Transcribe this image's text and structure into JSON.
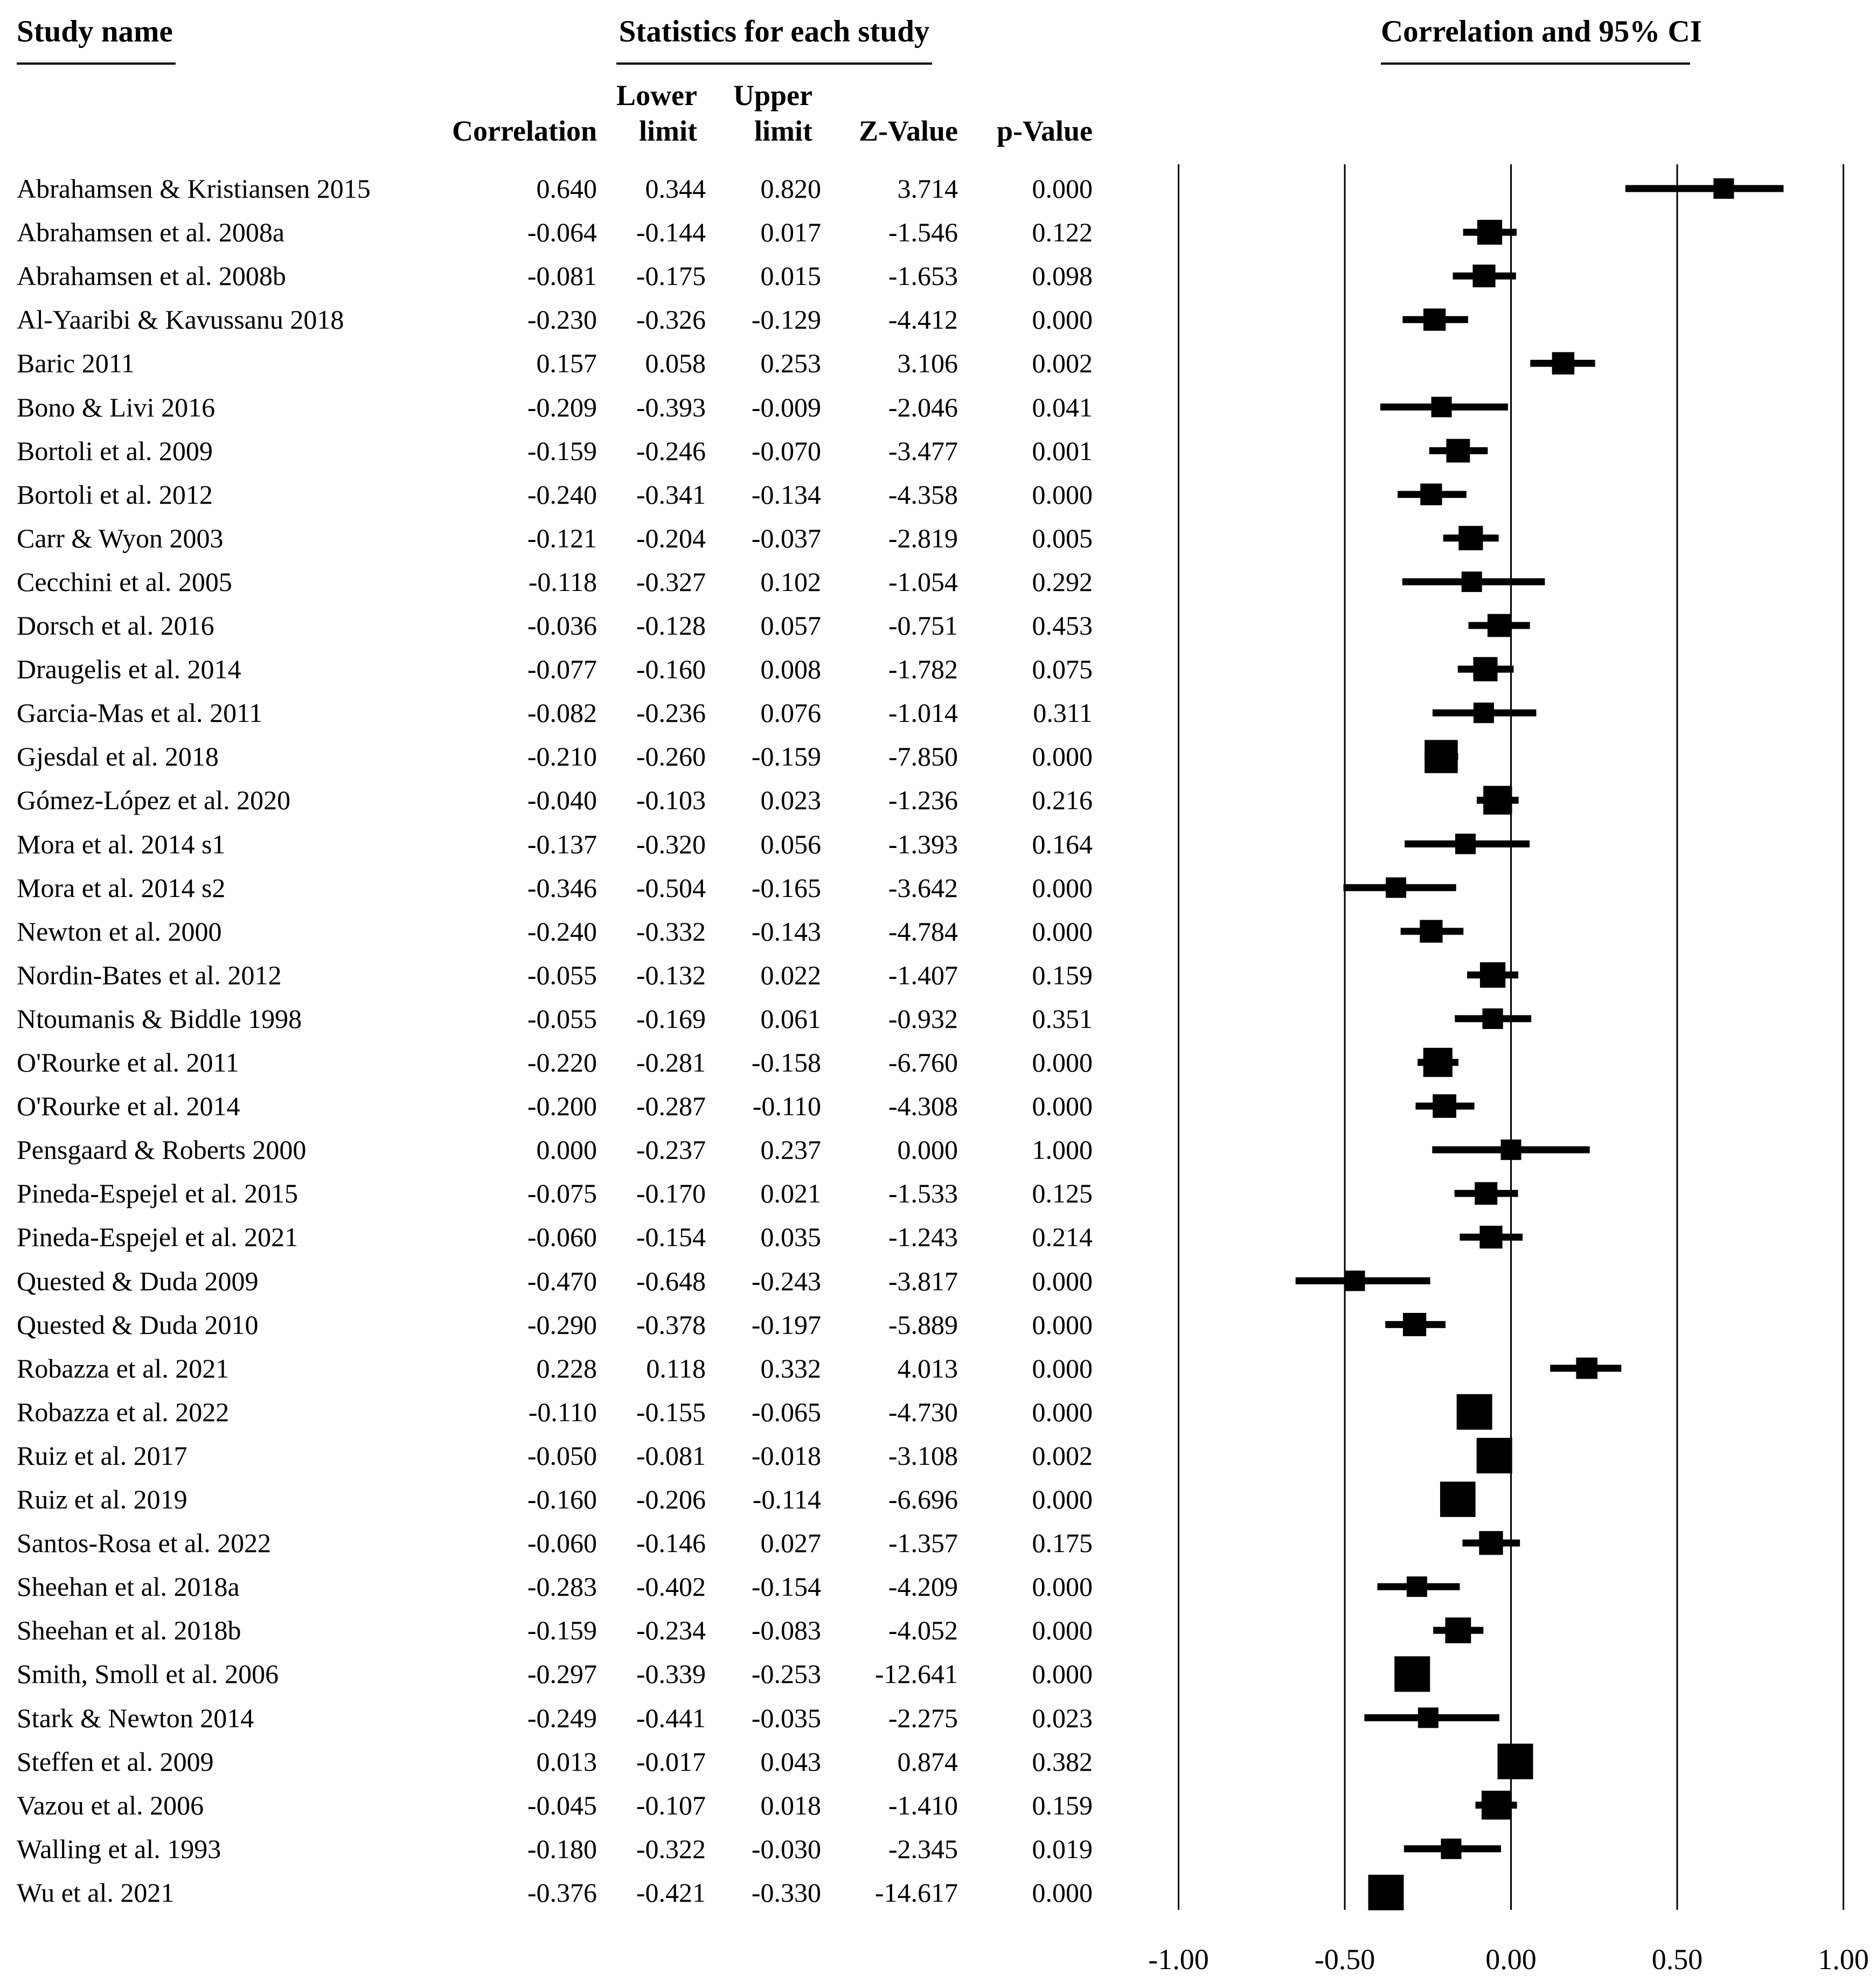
{
  "page": {
    "background": "#ffffff",
    "text_color": "#000000",
    "marker_color": "#000000"
  },
  "table": {
    "header_study": "Study name",
    "header_stats": "Statistics for each study",
    "header_plot": "Correlation and 95% CI",
    "columns": {
      "correlation": "Correlation",
      "lower_top": "Lower",
      "lower_bottom": "limit",
      "upper_top": "Upper",
      "upper_bottom": "limit",
      "z": "Z-Value",
      "p": "p-Value"
    }
  },
  "axis": {
    "tick_labels": [
      "-1.00",
      "-0.50",
      "0.00",
      "0.50",
      "1.00"
    ],
    "tick_values": [
      -1.0,
      -0.5,
      0.0,
      0.5,
      1.0
    ]
  },
  "studies": [
    {
      "name": "Abrahamsen & Kristiansen 2015",
      "correlation": "0.640",
      "lower": "0.344",
      "upper": "0.820",
      "z": "3.714",
      "p": "0.000"
    },
    {
      "name": "Abrahamsen et al. 2008a",
      "correlation": "-0.064",
      "lower": "-0.144",
      "upper": "0.017",
      "z": "-1.546",
      "p": "0.122"
    },
    {
      "name": "Abrahamsen et al. 2008b",
      "correlation": "-0.081",
      "lower": "-0.175",
      "upper": "0.015",
      "z": "-1.653",
      "p": "0.098"
    },
    {
      "name": "Al-Yaaribi & Kavussanu 2018",
      "correlation": "-0.230",
      "lower": "-0.326",
      "upper": "-0.129",
      "z": "-4.412",
      "p": "0.000"
    },
    {
      "name": "Baric 2011",
      "correlation": "0.157",
      "lower": "0.058",
      "upper": "0.253",
      "z": "3.106",
      "p": "0.002"
    },
    {
      "name": "Bono & Livi 2016",
      "correlation": "-0.209",
      "lower": "-0.393",
      "upper": "-0.009",
      "z": "-2.046",
      "p": "0.041"
    },
    {
      "name": "Bortoli et al. 2009",
      "correlation": "-0.159",
      "lower": "-0.246",
      "upper": "-0.070",
      "z": "-3.477",
      "p": "0.001"
    },
    {
      "name": "Bortoli et al. 2012",
      "correlation": "-0.240",
      "lower": "-0.341",
      "upper": "-0.134",
      "z": "-4.358",
      "p": "0.000"
    },
    {
      "name": "Carr & Wyon 2003",
      "correlation": "-0.121",
      "lower": "-0.204",
      "upper": "-0.037",
      "z": "-2.819",
      "p": "0.005"
    },
    {
      "name": "Cecchini et al. 2005",
      "correlation": "-0.118",
      "lower": "-0.327",
      "upper": "0.102",
      "z": "-1.054",
      "p": "0.292"
    },
    {
      "name": "Dorsch et al. 2016",
      "correlation": "-0.036",
      "lower": "-0.128",
      "upper": "0.057",
      "z": "-0.751",
      "p": "0.453"
    },
    {
      "name": "Draugelis et al. 2014",
      "correlation": "-0.077",
      "lower": "-0.160",
      "upper": "0.008",
      "z": "-1.782",
      "p": "0.075"
    },
    {
      "name": "Garcia-Mas et al. 2011",
      "correlation": "-0.082",
      "lower": "-0.236",
      "upper": "0.076",
      "z": "-1.014",
      "p": "0.311"
    },
    {
      "name": "Gjesdal et al. 2018",
      "correlation": "-0.210",
      "lower": "-0.260",
      "upper": "-0.159",
      "z": "-7.850",
      "p": "0.000"
    },
    {
      "name": "Gómez-López et al. 2020",
      "correlation": "-0.040",
      "lower": "-0.103",
      "upper": "0.023",
      "z": "-1.236",
      "p": "0.216"
    },
    {
      "name": "Mora et al. 2014 s1",
      "correlation": "-0.137",
      "lower": "-0.320",
      "upper": "0.056",
      "z": "-1.393",
      "p": "0.164"
    },
    {
      "name": "Mora et al. 2014 s2",
      "correlation": "-0.346",
      "lower": "-0.504",
      "upper": "-0.165",
      "z": "-3.642",
      "p": "0.000"
    },
    {
      "name": "Newton et al. 2000",
      "correlation": "-0.240",
      "lower": "-0.332",
      "upper": "-0.143",
      "z": "-4.784",
      "p": "0.000"
    },
    {
      "name": "Nordin-Bates et al. 2012",
      "correlation": "-0.055",
      "lower": "-0.132",
      "upper": "0.022",
      "z": "-1.407",
      "p": "0.159"
    },
    {
      "name": "Ntoumanis & Biddle 1998",
      "correlation": "-0.055",
      "lower": "-0.169",
      "upper": "0.061",
      "z": "-0.932",
      "p": "0.351"
    },
    {
      "name": "O'Rourke et al. 2011",
      "correlation": "-0.220",
      "lower": "-0.281",
      "upper": "-0.158",
      "z": "-6.760",
      "p": "0.000"
    },
    {
      "name": "O'Rourke et al. 2014",
      "correlation": "-0.200",
      "lower": "-0.287",
      "upper": "-0.110",
      "z": "-4.308",
      "p": "0.000"
    },
    {
      "name": "Pensgaard & Roberts 2000",
      "correlation": "0.000",
      "lower": "-0.237",
      "upper": "0.237",
      "z": "0.000",
      "p": "1.000"
    },
    {
      "name": "Pineda-Espejel et al. 2015",
      "correlation": "-0.075",
      "lower": "-0.170",
      "upper": "0.021",
      "z": "-1.533",
      "p": "0.125"
    },
    {
      "name": "Pineda-Espejel et al. 2021",
      "correlation": "-0.060",
      "lower": "-0.154",
      "upper": "0.035",
      "z": "-1.243",
      "p": "0.214"
    },
    {
      "name": "Quested & Duda 2009",
      "correlation": "-0.470",
      "lower": "-0.648",
      "upper": "-0.243",
      "z": "-3.817",
      "p": "0.000"
    },
    {
      "name": "Quested & Duda 2010",
      "correlation": "-0.290",
      "lower": "-0.378",
      "upper": "-0.197",
      "z": "-5.889",
      "p": "0.000"
    },
    {
      "name": "Robazza et al. 2021",
      "correlation": "0.228",
      "lower": "0.118",
      "upper": "0.332",
      "z": "4.013",
      "p": "0.000"
    },
    {
      "name": "Robazza et al. 2022",
      "correlation": "-0.110",
      "lower": "-0.155",
      "upper": "-0.065",
      "z": "-4.730",
      "p": "0.000"
    },
    {
      "name": "Ruiz et al. 2017",
      "correlation": "-0.050",
      "lower": "-0.081",
      "upper": "-0.018",
      "z": "-3.108",
      "p": "0.002"
    },
    {
      "name": "Ruiz et al. 2019",
      "correlation": "-0.160",
      "lower": "-0.206",
      "upper": "-0.114",
      "z": "-6.696",
      "p": "0.000"
    },
    {
      "name": "Santos-Rosa et al. 2022",
      "correlation": "-0.060",
      "lower": "-0.146",
      "upper": "0.027",
      "z": "-1.357",
      "p": "0.175"
    },
    {
      "name": "Sheehan et al. 2018a",
      "correlation": "-0.283",
      "lower": "-0.402",
      "upper": "-0.154",
      "z": "-4.209",
      "p": "0.000"
    },
    {
      "name": "Sheehan et al. 2018b",
      "correlation": "-0.159",
      "lower": "-0.234",
      "upper": "-0.083",
      "z": "-4.052",
      "p": "0.000"
    },
    {
      "name": "Smith, Smoll et al. 2006",
      "correlation": "-0.297",
      "lower": "-0.339",
      "upper": "-0.253",
      "z": "-12.641",
      "p": "0.000"
    },
    {
      "name": "Stark & Newton 2014",
      "correlation": "-0.249",
      "lower": "-0.441",
      "upper": "-0.035",
      "z": "-2.275",
      "p": "0.023"
    },
    {
      "name": "Steffen et al. 2009",
      "correlation": "0.013",
      "lower": "-0.017",
      "upper": "0.043",
      "z": "0.874",
      "p": "0.382"
    },
    {
      "name": "Vazou et al. 2006",
      "correlation": "-0.045",
      "lower": "-0.107",
      "upper": "0.018",
      "z": "-1.410",
      "p": "0.159"
    },
    {
      "name": "Walling et al. 1993",
      "correlation": "-0.180",
      "lower": "-0.322",
      "upper": "-0.030",
      "z": "-2.345",
      "p": "0.019"
    },
    {
      "name": "Wu et al. 2021",
      "correlation": "-0.376",
      "lower": "-0.421",
      "upper": "-0.330",
      "z": "-14.617",
      "p": "0.000"
    }
  ],
  "chart_data": {
    "type": "scatter",
    "subtype": "forest-plot-meta-analysis",
    "title": "Correlation and 95% CI",
    "xlabel": "Correlation",
    "ylabel": "Study name",
    "xlim": [
      -1.0,
      1.0
    ],
    "x_ticks": [
      -1.0,
      -0.5,
      0.0,
      0.5,
      1.0
    ],
    "grid": "vertical-lines-at-ticks",
    "legend": "none",
    "marker": "black-square-sized-by-precision-with-ci-whiskers",
    "categories": [
      "Abrahamsen & Kristiansen 2015",
      "Abrahamsen et al. 2008a",
      "Abrahamsen et al. 2008b",
      "Al-Yaaribi & Kavussanu 2018",
      "Baric 2011",
      "Bono & Livi 2016",
      "Bortoli et al. 2009",
      "Bortoli et al. 2012",
      "Carr & Wyon 2003",
      "Cecchini et al. 2005",
      "Dorsch et al. 2016",
      "Draugelis et al. 2014",
      "Garcia-Mas et al. 2011",
      "Gjesdal et al. 2018",
      "Gómez-López et al. 2020",
      "Mora et al. 2014 s1",
      "Mora et al. 2014 s2",
      "Newton et al. 2000",
      "Nordin-Bates et al. 2012",
      "Ntoumanis & Biddle 1998",
      "O'Rourke et al. 2011",
      "O'Rourke et al. 2014",
      "Pensgaard & Roberts 2000",
      "Pineda-Espejel et al. 2015",
      "Pineda-Espejel et al. 2021",
      "Quested & Duda 2009",
      "Quested & Duda 2010",
      "Robazza et al. 2021",
      "Robazza et al. 2022",
      "Ruiz et al. 2017",
      "Ruiz et al. 2019",
      "Santos-Rosa et al. 2022",
      "Sheehan et al. 2018a",
      "Sheehan et al. 2018b",
      "Smith, Smoll et al. 2006",
      "Stark & Newton 2014",
      "Steffen et al. 2009",
      "Vazou et al. 2006",
      "Walling et al. 1993",
      "Wu et al. 2021"
    ],
    "series": [
      {
        "name": "correlation",
        "values": [
          0.64,
          -0.064,
          -0.081,
          -0.23,
          0.157,
          -0.209,
          -0.159,
          -0.24,
          -0.121,
          -0.118,
          -0.036,
          -0.077,
          -0.082,
          -0.21,
          -0.04,
          -0.137,
          -0.346,
          -0.24,
          -0.055,
          -0.055,
          -0.22,
          -0.2,
          0.0,
          -0.075,
          -0.06,
          -0.47,
          -0.29,
          0.228,
          -0.11,
          -0.05,
          -0.16,
          -0.06,
          -0.283,
          -0.159,
          -0.297,
          -0.249,
          0.013,
          -0.045,
          -0.18,
          -0.376
        ]
      },
      {
        "name": "lower_limit",
        "values": [
          0.344,
          -0.144,
          -0.175,
          -0.326,
          0.058,
          -0.393,
          -0.246,
          -0.341,
          -0.204,
          -0.327,
          -0.128,
          -0.16,
          -0.236,
          -0.26,
          -0.103,
          -0.32,
          -0.504,
          -0.332,
          -0.132,
          -0.169,
          -0.281,
          -0.287,
          -0.237,
          -0.17,
          -0.154,
          -0.648,
          -0.378,
          0.118,
          -0.155,
          -0.081,
          -0.206,
          -0.146,
          -0.402,
          -0.234,
          -0.339,
          -0.441,
          -0.017,
          -0.107,
          -0.322,
          -0.421
        ]
      },
      {
        "name": "upper_limit",
        "values": [
          0.82,
          0.017,
          0.015,
          -0.129,
          0.253,
          -0.009,
          -0.07,
          -0.134,
          -0.037,
          0.102,
          0.057,
          0.008,
          0.076,
          -0.159,
          0.023,
          0.056,
          -0.165,
          -0.143,
          0.022,
          0.061,
          -0.158,
          -0.11,
          0.237,
          0.021,
          0.035,
          -0.243,
          -0.197,
          0.332,
          -0.065,
          -0.018,
          -0.114,
          0.027,
          -0.154,
          -0.083,
          -0.253,
          -0.035,
          0.043,
          0.018,
          -0.03,
          -0.33
        ]
      },
      {
        "name": "z_value",
        "values": [
          3.714,
          -1.546,
          -1.653,
          -4.412,
          3.106,
          -2.046,
          -3.477,
          -4.358,
          -2.819,
          -1.054,
          -0.751,
          -1.782,
          -1.014,
          -7.85,
          -1.236,
          -1.393,
          -3.642,
          -4.784,
          -1.407,
          -0.932,
          -6.76,
          -4.308,
          0.0,
          -1.533,
          -1.243,
          -3.817,
          -5.889,
          4.013,
          -4.73,
          -3.108,
          -6.696,
          -1.357,
          -4.209,
          -4.052,
          -12.641,
          -2.275,
          0.874,
          -1.41,
          -2.345,
          -14.617
        ]
      },
      {
        "name": "p_value",
        "values": [
          0.0,
          0.122,
          0.098,
          0.0,
          0.002,
          0.041,
          0.001,
          0.0,
          0.005,
          0.292,
          0.453,
          0.075,
          0.311,
          0.0,
          0.216,
          0.164,
          0.0,
          0.0,
          0.159,
          0.351,
          0.0,
          0.0,
          1.0,
          0.125,
          0.214,
          0.0,
          0.0,
          0.0,
          0.0,
          0.002,
          0.0,
          0.175,
          0.0,
          0.0,
          0.0,
          0.023,
          0.382,
          0.159,
          0.019,
          0.0
        ]
      }
    ]
  }
}
